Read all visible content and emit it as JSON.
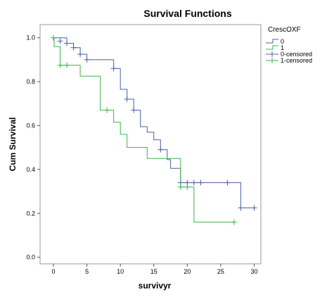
{
  "chart_data": {
    "type": "line",
    "subtype": "kaplan-meier-step",
    "title": "Survival Functions",
    "xlabel": "survivyr",
    "ylabel": "Cum Survival",
    "xlim": [
      -2,
      31
    ],
    "ylim": [
      -0.03,
      1.06
    ],
    "x_ticks": [
      0,
      5,
      10,
      15,
      20,
      25,
      30
    ],
    "y_ticks": [
      0.0,
      0.2,
      0.4,
      0.6,
      0.8,
      1.0
    ],
    "y_tick_labels": [
      "0.0",
      "0.2",
      "0.4",
      "0.6",
      "0.8",
      "1.0"
    ],
    "grid": false,
    "legend": {
      "title": "CrescOXF",
      "placement": "right",
      "entries": [
        "0",
        "1",
        "0-censored",
        "1-censored"
      ]
    },
    "series": [
      {
        "name": "0",
        "color": "#4a5fa8",
        "steps": [
          [
            0,
            1.0
          ],
          [
            2,
            0.975
          ],
          [
            3,
            0.955
          ],
          [
            4,
            0.925
          ],
          [
            5,
            0.9
          ],
          [
            9,
            0.86
          ],
          [
            10,
            0.765
          ],
          [
            11,
            0.72
          ],
          [
            12,
            0.67
          ],
          [
            13,
            0.595
          ],
          [
            14,
            0.57
          ],
          [
            15,
            0.535
          ],
          [
            16,
            0.49
          ],
          [
            17,
            0.445
          ],
          [
            17.5,
            0.405
          ],
          [
            19,
            0.34
          ],
          [
            28,
            0.225
          ],
          [
            30,
            0.225
          ]
        ],
        "censored": [
          [
            1,
            0.985
          ],
          [
            2,
            0.975
          ],
          [
            3,
            0.955
          ],
          [
            4,
            0.925
          ],
          [
            5,
            0.9
          ],
          [
            9,
            0.86
          ],
          [
            11,
            0.72
          ],
          [
            12,
            0.67
          ],
          [
            16,
            0.49
          ],
          [
            19,
            0.34
          ],
          [
            20,
            0.34
          ],
          [
            21,
            0.34
          ],
          [
            22,
            0.34
          ],
          [
            26,
            0.34
          ],
          [
            28,
            0.225
          ],
          [
            30,
            0.225
          ]
        ]
      },
      {
        "name": "1",
        "color": "#3cb44b",
        "steps": [
          [
            0,
            1.0
          ],
          [
            0.1,
            0.96
          ],
          [
            1,
            0.875
          ],
          [
            4,
            0.825
          ],
          [
            7,
            0.67
          ],
          [
            9,
            0.615
          ],
          [
            10,
            0.56
          ],
          [
            11,
            0.5
          ],
          [
            14,
            0.45
          ],
          [
            19,
            0.32
          ],
          [
            21,
            0.16
          ],
          [
            27,
            0.16
          ]
        ],
        "censored": [
          [
            0,
            1.0
          ],
          [
            1,
            0.875
          ],
          [
            2,
            0.875
          ],
          [
            8,
            0.67
          ],
          [
            19,
            0.32
          ],
          [
            20,
            0.32
          ],
          [
            27,
            0.16
          ]
        ]
      }
    ]
  }
}
